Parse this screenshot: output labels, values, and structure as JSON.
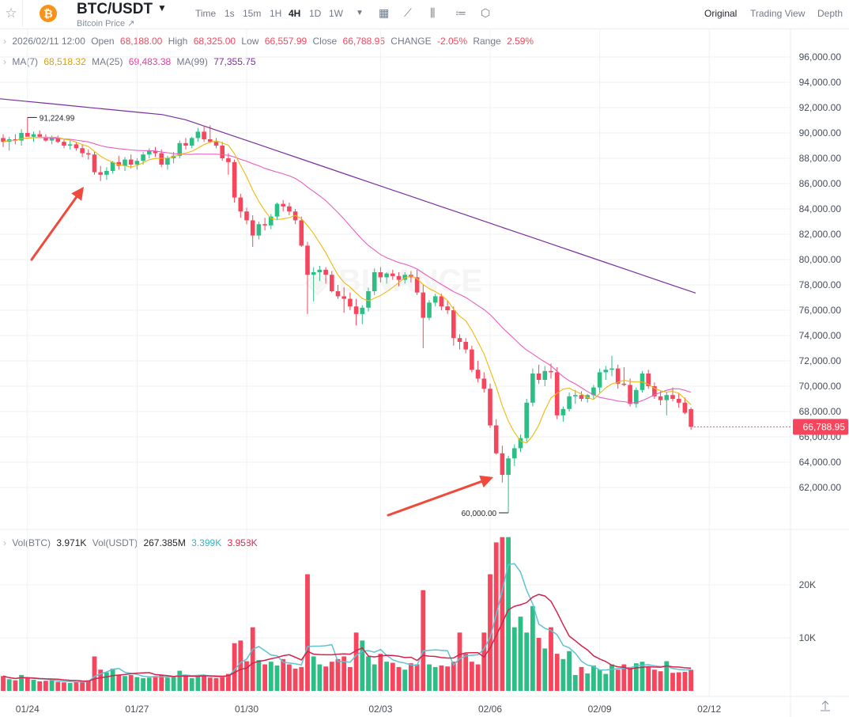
{
  "header": {
    "pair": "BTC/USDT",
    "subtitle": "Bitcoin Price ↗",
    "coin_symbol": "₿",
    "timeframes": [
      "Time",
      "1s",
      "15m",
      "1H",
      "4H",
      "1D",
      "1W"
    ],
    "active_timeframe": "4H",
    "views": [
      "Original",
      "Trading View",
      "Depth"
    ],
    "active_view": "Original",
    "icons": [
      "star-icon",
      "chevron-down-icon",
      "calendar-icon",
      "line-chart-icon",
      "candle-settings-icon",
      "indicator-icon",
      "hexagon-settings-icon"
    ]
  },
  "ohlc": {
    "date": "2026/02/11 12:00",
    "open_label": "Open",
    "open": "68,188.00",
    "high_label": "High",
    "high": "68,325.00",
    "low_label": "Low",
    "low": "66,557.99",
    "close_label": "Close",
    "close": "66,788.95",
    "change_label": "CHANGE",
    "change": "-2.05%",
    "range_label": "Range",
    "range": "2.59%"
  },
  "ma": {
    "ma7_label": "MA(7)",
    "ma7": "68,518.32",
    "ma25_label": "MA(25)",
    "ma25": "69,483.38",
    "ma99_label": "MA(99)",
    "ma99": "77,355.75"
  },
  "vol": {
    "btc_label": "Vol(BTC)",
    "btc": "3.971K",
    "usdt_label": "Vol(USDT)",
    "usdt": "267.385M",
    "ma_a": "3.399K",
    "ma_b": "3.958K"
  },
  "colors": {
    "up": "#2ebd85",
    "down": "#f6465d",
    "ma7": "#f0b90b",
    "ma25": "#e75fc4",
    "ma99": "#7a2fa0",
    "vol_ma_a": "#5ec3d3",
    "vol_ma_b": "#d4234c",
    "grid": "#f0f1f3",
    "arrow": "#ef4a3c"
  },
  "chart_data": {
    "type": "candlestick",
    "interval": "4H",
    "price_axis": {
      "ylim": [
        60000,
        97000
      ],
      "ticks": [
        "62,000.00",
        "64,000.00",
        "66,000.00",
        "68,000.00",
        "70,000.00",
        "72,000.00",
        "74,000.00",
        "76,000.00",
        "78,000.00",
        "80,000.00",
        "82,000.00",
        "84,000.00",
        "86,000.00",
        "88,000.00",
        "90,000.00",
        "92,000.00",
        "94,000.00",
        "96,000.00"
      ]
    },
    "current_price": "66,788.95",
    "annotations": {
      "high_label": "91,224.99",
      "high": 91224.99,
      "low_label": "60,000.00",
      "low": 60000
    },
    "x_labels": [
      "01/24",
      "01/27",
      "01/30",
      "02/03",
      "02/06",
      "02/09",
      "02/12"
    ],
    "volume_axis": {
      "ylim": [
        0,
        30000
      ],
      "ticks": [
        "10K",
        "20K"
      ]
    },
    "candles": [
      [
        89600,
        89900,
        88900,
        89300,
        2800
      ],
      [
        89300,
        89700,
        88600,
        89500,
        2200
      ],
      [
        89500,
        89900,
        89100,
        89400,
        2000
      ],
      [
        89400,
        90300,
        89000,
        90000,
        3000
      ],
      [
        90000,
        91225,
        89800,
        89700,
        2400
      ],
      [
        89700,
        90100,
        89300,
        89900,
        2100
      ],
      [
        89900,
        90200,
        89600,
        89700,
        1800
      ],
      [
        89700,
        89900,
        89300,
        89400,
        1900
      ],
      [
        89400,
        89800,
        89100,
        89600,
        2000
      ],
      [
        89600,
        89800,
        89200,
        89300,
        1700
      ],
      [
        89300,
        89500,
        88800,
        89000,
        1600
      ],
      [
        89000,
        89400,
        88700,
        89100,
        1500
      ],
      [
        89100,
        89300,
        88600,
        88800,
        1700
      ],
      [
        88800,
        89100,
        88100,
        88400,
        1900
      ],
      [
        88400,
        88700,
        87900,
        88300,
        2000
      ],
      [
        88300,
        88500,
        86700,
        86900,
        6500
      ],
      [
        86900,
        87400,
        86200,
        86700,
        4000
      ],
      [
        86700,
        87300,
        86300,
        87000,
        3500
      ],
      [
        87000,
        87800,
        86800,
        87700,
        4200
      ],
      [
        87700,
        88200,
        87100,
        87400,
        3000
      ],
      [
        87400,
        88100,
        87000,
        87900,
        2800
      ],
      [
        87900,
        88300,
        87200,
        87500,
        3000
      ],
      [
        87500,
        88000,
        87100,
        87800,
        2600
      ],
      [
        87800,
        88500,
        87500,
        88300,
        2400
      ],
      [
        88300,
        88800,
        88000,
        88600,
        2500
      ],
      [
        88600,
        88900,
        88100,
        88400,
        2800
      ],
      [
        88400,
        88700,
        87300,
        87500,
        3000
      ],
      [
        87500,
        88200,
        87100,
        88000,
        2500
      ],
      [
        88000,
        88500,
        87600,
        88200,
        2600
      ],
      [
        88200,
        89400,
        88000,
        89200,
        3800
      ],
      [
        89200,
        89600,
        88700,
        89000,
        3000
      ],
      [
        89000,
        89700,
        88800,
        89600,
        2400
      ],
      [
        89600,
        90400,
        89300,
        90100,
        2800
      ],
      [
        90100,
        90500,
        89300,
        89500,
        3000
      ],
      [
        89500,
        90600,
        89200,
        89300,
        2500
      ],
      [
        89300,
        89600,
        88800,
        89000,
        2400
      ],
      [
        89000,
        89300,
        87800,
        88000,
        2600
      ],
      [
        88000,
        88400,
        86700,
        87700,
        3200
      ],
      [
        87700,
        87900,
        84500,
        84900,
        9000
      ],
      [
        84900,
        85200,
        83300,
        83800,
        9500
      ],
      [
        83800,
        84100,
        82800,
        83100,
        5600
      ],
      [
        83100,
        83500,
        81000,
        81900,
        12000
      ],
      [
        81900,
        83000,
        81600,
        82800,
        5800
      ],
      [
        82800,
        83300,
        82300,
        82700,
        5000
      ],
      [
        82700,
        83600,
        82400,
        83400,
        5500
      ],
      [
        83400,
        84500,
        83100,
        84400,
        4800
      ],
      [
        84400,
        84700,
        83800,
        84200,
        6000
      ],
      [
        84200,
        84500,
        83500,
        83800,
        5000
      ],
      [
        83800,
        84000,
        82800,
        83100,
        4200
      ],
      [
        83100,
        83400,
        81000,
        81100,
        4500
      ],
      [
        81100,
        81400,
        75700,
        78800,
        22000
      ],
      [
        78800,
        79400,
        76700,
        79000,
        6500
      ],
      [
        79000,
        79500,
        78300,
        79200,
        5000
      ],
      [
        79200,
        79400,
        78100,
        78800,
        4600
      ],
      [
        78800,
        79100,
        77400,
        77500,
        5500
      ],
      [
        77500,
        78000,
        76900,
        77100,
        6000
      ],
      [
        77100,
        77800,
        75800,
        76900,
        6500
      ],
      [
        76900,
        77400,
        76000,
        76300,
        4500
      ],
      [
        76300,
        76900,
        74800,
        75700,
        11000
      ],
      [
        75700,
        76400,
        74900,
        76200,
        9500
      ],
      [
        76200,
        77800,
        75900,
        77500,
        6500
      ],
      [
        77500,
        79300,
        77200,
        79000,
        5000
      ],
      [
        79000,
        79400,
        78200,
        78600,
        7000
      ],
      [
        78600,
        79000,
        78100,
        78900,
        5500
      ],
      [
        78900,
        79200,
        78400,
        78700,
        5300
      ],
      [
        78700,
        79000,
        77900,
        78400,
        4500
      ],
      [
        78400,
        79000,
        78100,
        78800,
        4000
      ],
      [
        78800,
        79100,
        78200,
        78600,
        5200
      ],
      [
        78600,
        79200,
        77200,
        77400,
        5000
      ],
      [
        77400,
        78000,
        73000,
        75400,
        19000
      ],
      [
        75400,
        76800,
        75200,
        76600,
        5000
      ],
      [
        76600,
        77300,
        76300,
        77100,
        4500
      ],
      [
        77100,
        77300,
        76000,
        76300,
        4800
      ],
      [
        76300,
        76800,
        75700,
        76000,
        4600
      ],
      [
        76000,
        76300,
        73200,
        73800,
        5500
      ],
      [
        73800,
        74100,
        72900,
        73500,
        11000
      ],
      [
        73500,
        73800,
        72600,
        72900,
        7000
      ],
      [
        72900,
        73200,
        71100,
        71300,
        5500
      ],
      [
        71300,
        72000,
        70300,
        70600,
        5000
      ],
      [
        70600,
        71100,
        69500,
        69800,
        11000
      ],
      [
        69800,
        70200,
        66700,
        66900,
        22000
      ],
      [
        66900,
        67400,
        64600,
        64700,
        28000
      ],
      [
        64700,
        65300,
        62400,
        63000,
        29000
      ],
      [
        63000,
        64500,
        60000,
        64300,
        29000
      ],
      [
        64300,
        65400,
        63700,
        65100,
        12000
      ],
      [
        65100,
        66200,
        64800,
        65900,
        14000
      ],
      [
        65900,
        69000,
        65600,
        68700,
        11000
      ],
      [
        68700,
        71400,
        68400,
        71000,
        16000
      ],
      [
        71000,
        71700,
        70200,
        70500,
        10000
      ],
      [
        70500,
        71600,
        70000,
        71200,
        8000
      ],
      [
        71200,
        71800,
        70600,
        71100,
        12000
      ],
      [
        71100,
        71500,
        67400,
        67700,
        7000
      ],
      [
        67700,
        68400,
        67200,
        68200,
        6000
      ],
      [
        68200,
        69500,
        68000,
        69200,
        7500
      ],
      [
        69200,
        69700,
        68600,
        69300,
        3000
      ],
      [
        69300,
        69600,
        68800,
        69000,
        4500
      ],
      [
        69000,
        69400,
        68700,
        69300,
        3300
      ],
      [
        69300,
        70100,
        69000,
        69900,
        4800
      ],
      [
        69900,
        71400,
        69500,
        71100,
        4000
      ],
      [
        71100,
        71600,
        70500,
        71300,
        3200
      ],
      [
        71300,
        72400,
        70800,
        71400,
        5000
      ],
      [
        71400,
        71700,
        69800,
        70200,
        4000
      ],
      [
        70200,
        71500,
        70000,
        70100,
        5000
      ],
      [
        70100,
        70600,
        68400,
        68600,
        4500
      ],
      [
        68600,
        69900,
        68300,
        69700,
        5200
      ],
      [
        69700,
        71200,
        69500,
        71000,
        5500
      ],
      [
        71000,
        71300,
        69800,
        70000,
        4500
      ],
      [
        70000,
        70300,
        69000,
        69200,
        4000
      ],
      [
        69200,
        69600,
        68500,
        68900,
        3700
      ],
      [
        68900,
        69500,
        67700,
        69300,
        5600
      ],
      [
        69300,
        69900,
        68800,
        69000,
        3400
      ],
      [
        69000,
        69400,
        68300,
        68700,
        3500
      ],
      [
        68700,
        69100,
        67800,
        67900,
        3600
      ],
      [
        68188,
        68325,
        66557.99,
        66788.95,
        3971
      ]
    ],
    "ma99_endpoints": [
      [
        0,
        92700
      ],
      [
        100,
        77355.75
      ]
    ]
  }
}
